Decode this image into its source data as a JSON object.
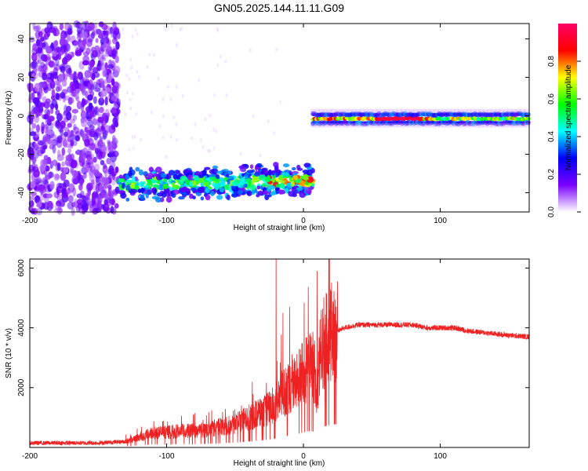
{
  "page_title": "GN05.2025.144.11.11.G09",
  "chart_data": [
    {
      "type": "heatmap",
      "title": "GN05.2025.144.11.11.G09",
      "xlabel": "Height of straight line (km)",
      "ylabel": "Frequency (Hz)",
      "xlim": [
        -200,
        165
      ],
      "ylim": [
        -50,
        48
      ],
      "xticks": [
        -200,
        -100,
        0,
        100
      ],
      "yticks": [
        -40,
        -20,
        0,
        20,
        40
      ],
      "colorbar": {
        "label": "Normalized spectral amplitude",
        "range": [
          0,
          1
        ],
        "ticks": [
          0.0,
          0.2,
          0.4,
          0.6,
          0.8
        ],
        "colors": [
          "#ffffff",
          "#7a00ff",
          "#0000ff",
          "#00ffff",
          "#00ff00",
          "#ffff00",
          "#ff0000",
          "#ff0066"
        ]
      },
      "features": [
        {
          "x_range": [
            -200,
            -135
          ],
          "freq_range": [
            -50,
            48
          ],
          "amplitude": 0.15
        },
        {
          "x_range": [
            -135,
            7
          ],
          "freq_center": [
            -36,
            -33
          ],
          "amplitude": 0.4
        },
        {
          "x_range": [
            7,
            165
          ],
          "freq_center": [
            -2,
            -1
          ],
          "amplitude": 0.9
        }
      ]
    },
    {
      "type": "line",
      "xlabel": "Height of straight line (km)",
      "ylabel": "SNR (10 * v/v)",
      "xlim": [
        -200,
        165
      ],
      "ylim": [
        0,
        6300
      ],
      "xticks": [
        -200,
        -100,
        0,
        100
      ],
      "yticks": [
        2000,
        4000,
        6000
      ],
      "color": "#ee2222",
      "x": [
        -200,
        -150,
        -130,
        -120,
        -110,
        -100,
        -90,
        -80,
        -70,
        -60,
        -50,
        -40,
        -30,
        -25,
        -20,
        -15,
        -10,
        -5,
        0,
        5,
        8,
        10,
        12,
        15,
        20,
        25,
        30,
        40,
        50,
        60,
        70,
        80,
        90,
        100,
        110,
        120,
        130,
        140,
        150,
        165
      ],
      "y": [
        150,
        150,
        200,
        350,
        500,
        500,
        550,
        550,
        600,
        700,
        800,
        1000,
        1200,
        1300,
        1500,
        1800,
        2000,
        2200,
        2500,
        2800,
        2600,
        1500,
        3000,
        3500,
        3800,
        3900,
        4000,
        4100,
        4100,
        4100,
        4100,
        4100,
        4000,
        4000,
        4000,
        3900,
        3850,
        3800,
        3750,
        3700
      ],
      "spikes": [
        [
          -20,
          6300
        ],
        [
          -15,
          4500
        ],
        [
          -10,
          4700
        ],
        [
          10,
          5900
        ],
        [
          13,
          4600
        ]
      ]
    }
  ]
}
